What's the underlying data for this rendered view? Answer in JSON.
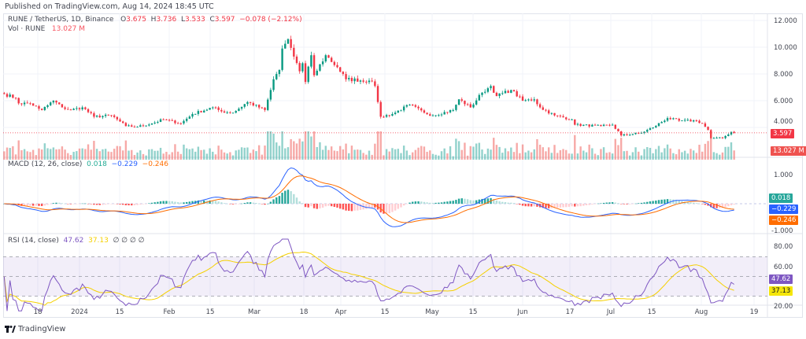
{
  "header": {
    "published": "Published on TradingView.com, Aug 14, 2024 18:45 UTC"
  },
  "legend": {
    "symbol": "RUNE / TetherUS, 1D, Binance",
    "o_label": "O",
    "open": "3.675",
    "h_label": "H",
    "high": "3.736",
    "l_label": "L",
    "low": "3.533",
    "c_label": "C",
    "close": "3.597",
    "change": "−0.078 (−2.12%)",
    "vol_label": "Vol · RUNE",
    "vol_value": "13.027 M"
  },
  "macd_legend": {
    "label": "MACD (12, 26, close)",
    "hist": "0.018",
    "macd": "−0.229",
    "signal": "−0.246"
  },
  "rsi_legend": {
    "label": "RSI (14, close)",
    "rsi": "47.62",
    "ma": "37.13",
    "extra": "∅ ∅ ∅ ∅"
  },
  "price_axis": {
    "ticks": [
      "12.000",
      "10.000",
      "8.000",
      "6.000",
      "4.000"
    ],
    "last_price": "3.597",
    "last_volume": "13.027 M"
  },
  "macd_axis": {
    "ticks": [
      "1.000",
      "-1.000"
    ],
    "hist_badge": "0.018",
    "macd_badge": "−0.229",
    "signal_badge": "−0.246"
  },
  "rsi_axis": {
    "ticks": [
      "80.00",
      "60.00",
      "20.00"
    ],
    "rsi_badge": "47.62",
    "ma_badge": "37.13"
  },
  "time_axis": {
    "labels": [
      "18",
      "2024",
      "15",
      "Feb",
      "15",
      "Mar",
      "18",
      "Apr",
      "15",
      "May",
      "15",
      "Jun",
      "17",
      "Jul",
      "15",
      "Aug",
      "19"
    ]
  },
  "footer": {
    "brand": "TradingView"
  },
  "colors": {
    "up": "#089981",
    "down": "#f23645",
    "macd": "#2962ff",
    "signal": "#ff6d00",
    "rsi": "#7e57c2",
    "rsi_ma": "#f5d000"
  },
  "chart_data": {
    "type": "candlestick",
    "symbol": "RUNE/USDT",
    "interval": "1D",
    "ylim": [
      2.5,
      12.5
    ],
    "close_keypoints": [
      [
        "2023-12-06",
        6.5
      ],
      [
        "2023-12-10",
        6.2
      ],
      [
        "2023-12-11",
        5.8
      ],
      [
        "2023-12-15",
        5.8
      ],
      [
        "2023-12-18",
        5.4
      ],
      [
        "2023-12-19",
        5.3
      ],
      [
        "2023-12-23",
        6.0
      ],
      [
        "2023-12-26",
        5.5
      ],
      [
        "2023-12-29",
        5.3
      ],
      [
        "2024-01-02",
        5.5
      ],
      [
        "2024-01-06",
        4.8
      ],
      [
        "2024-01-12",
        4.9
      ],
      [
        "2024-01-14",
        4.6
      ],
      [
        "2024-01-17",
        4.1
      ],
      [
        "2024-01-21",
        4.05
      ],
      [
        "2024-01-26",
        4.3
      ],
      [
        "2024-01-30",
        4.6
      ],
      [
        "2024-02-05",
        4.3
      ],
      [
        "2024-02-09",
        5.0
      ],
      [
        "2024-02-16",
        5.5
      ],
      [
        "2024-02-19",
        5.2
      ],
      [
        "2024-02-23",
        5.1
      ],
      [
        "2024-02-28",
        5.9
      ],
      [
        "2024-03-05",
        5.3
      ],
      [
        "2024-03-07",
        6.8
      ],
      [
        "2024-03-08",
        7.6
      ],
      [
        "2024-03-10",
        8.3
      ],
      [
        "2024-03-11",
        9.9
      ],
      [
        "2024-03-13",
        10.6
      ],
      [
        "2024-03-15",
        9.3
      ],
      [
        "2024-03-17",
        8.2
      ],
      [
        "2024-03-18",
        8.8
      ],
      [
        "2024-03-19",
        7.4
      ],
      [
        "2024-03-21",
        9.4
      ],
      [
        "2024-03-22",
        7.9
      ],
      [
        "2024-03-26",
        9.4
      ],
      [
        "2024-03-30",
        8.5
      ],
      [
        "2024-04-02",
        7.6
      ],
      [
        "2024-04-10",
        7.5
      ],
      [
        "2024-04-12",
        7.1
      ],
      [
        "2024-04-13",
        5.9
      ],
      [
        "2024-04-14",
        4.8
      ],
      [
        "2024-04-18",
        5.0
      ],
      [
        "2024-04-24",
        5.7
      ],
      [
        "2024-04-29",
        5.1
      ],
      [
        "2024-05-02",
        4.9
      ],
      [
        "2024-05-09",
        5.3
      ],
      [
        "2024-05-11",
        6.1
      ],
      [
        "2024-05-15",
        5.5
      ],
      [
        "2024-05-19",
        6.6
      ],
      [
        "2024-05-22",
        7.1
      ],
      [
        "2024-05-24",
        6.35
      ],
      [
        "2024-05-29",
        6.8
      ],
      [
        "2024-06-02",
        6.0
      ],
      [
        "2024-06-06",
        6.1
      ],
      [
        "2024-06-08",
        5.5
      ],
      [
        "2024-06-13",
        4.9
      ],
      [
        "2024-06-19",
        4.6
      ],
      [
        "2024-06-20",
        4.2
      ],
      [
        "2024-06-29",
        4.1
      ],
      [
        "2024-07-03",
        4.2
      ],
      [
        "2024-07-06",
        3.4
      ],
      [
        "2024-07-13",
        3.6
      ],
      [
        "2024-07-17",
        4.0
      ],
      [
        "2024-07-22",
        4.7
      ],
      [
        "2024-07-26",
        4.5
      ],
      [
        "2024-08-01",
        4.5
      ],
      [
        "2024-08-03",
        4.3
      ],
      [
        "2024-08-05",
        3.8
      ],
      [
        "2024-08-06",
        3.2
      ],
      [
        "2024-08-10",
        3.2
      ],
      [
        "2024-08-13",
        3.675
      ],
      [
        "2024-08-14",
        3.597
      ]
    ],
    "last_candle": {
      "date": "2024-08-14",
      "open": 3.675,
      "high": 3.736,
      "low": 3.533,
      "close": 3.597,
      "volume": "13.027M"
    },
    "indicators": {
      "macd": {
        "fast": 12,
        "slow": 26,
        "signal": 9,
        "ylim": [
          -1,
          1.1
        ]
      },
      "rsi": {
        "length": 14,
        "ma_length": 14,
        "bands": [
          30,
          50,
          70
        ],
        "ylim": [
          20,
          85
        ]
      }
    }
  }
}
